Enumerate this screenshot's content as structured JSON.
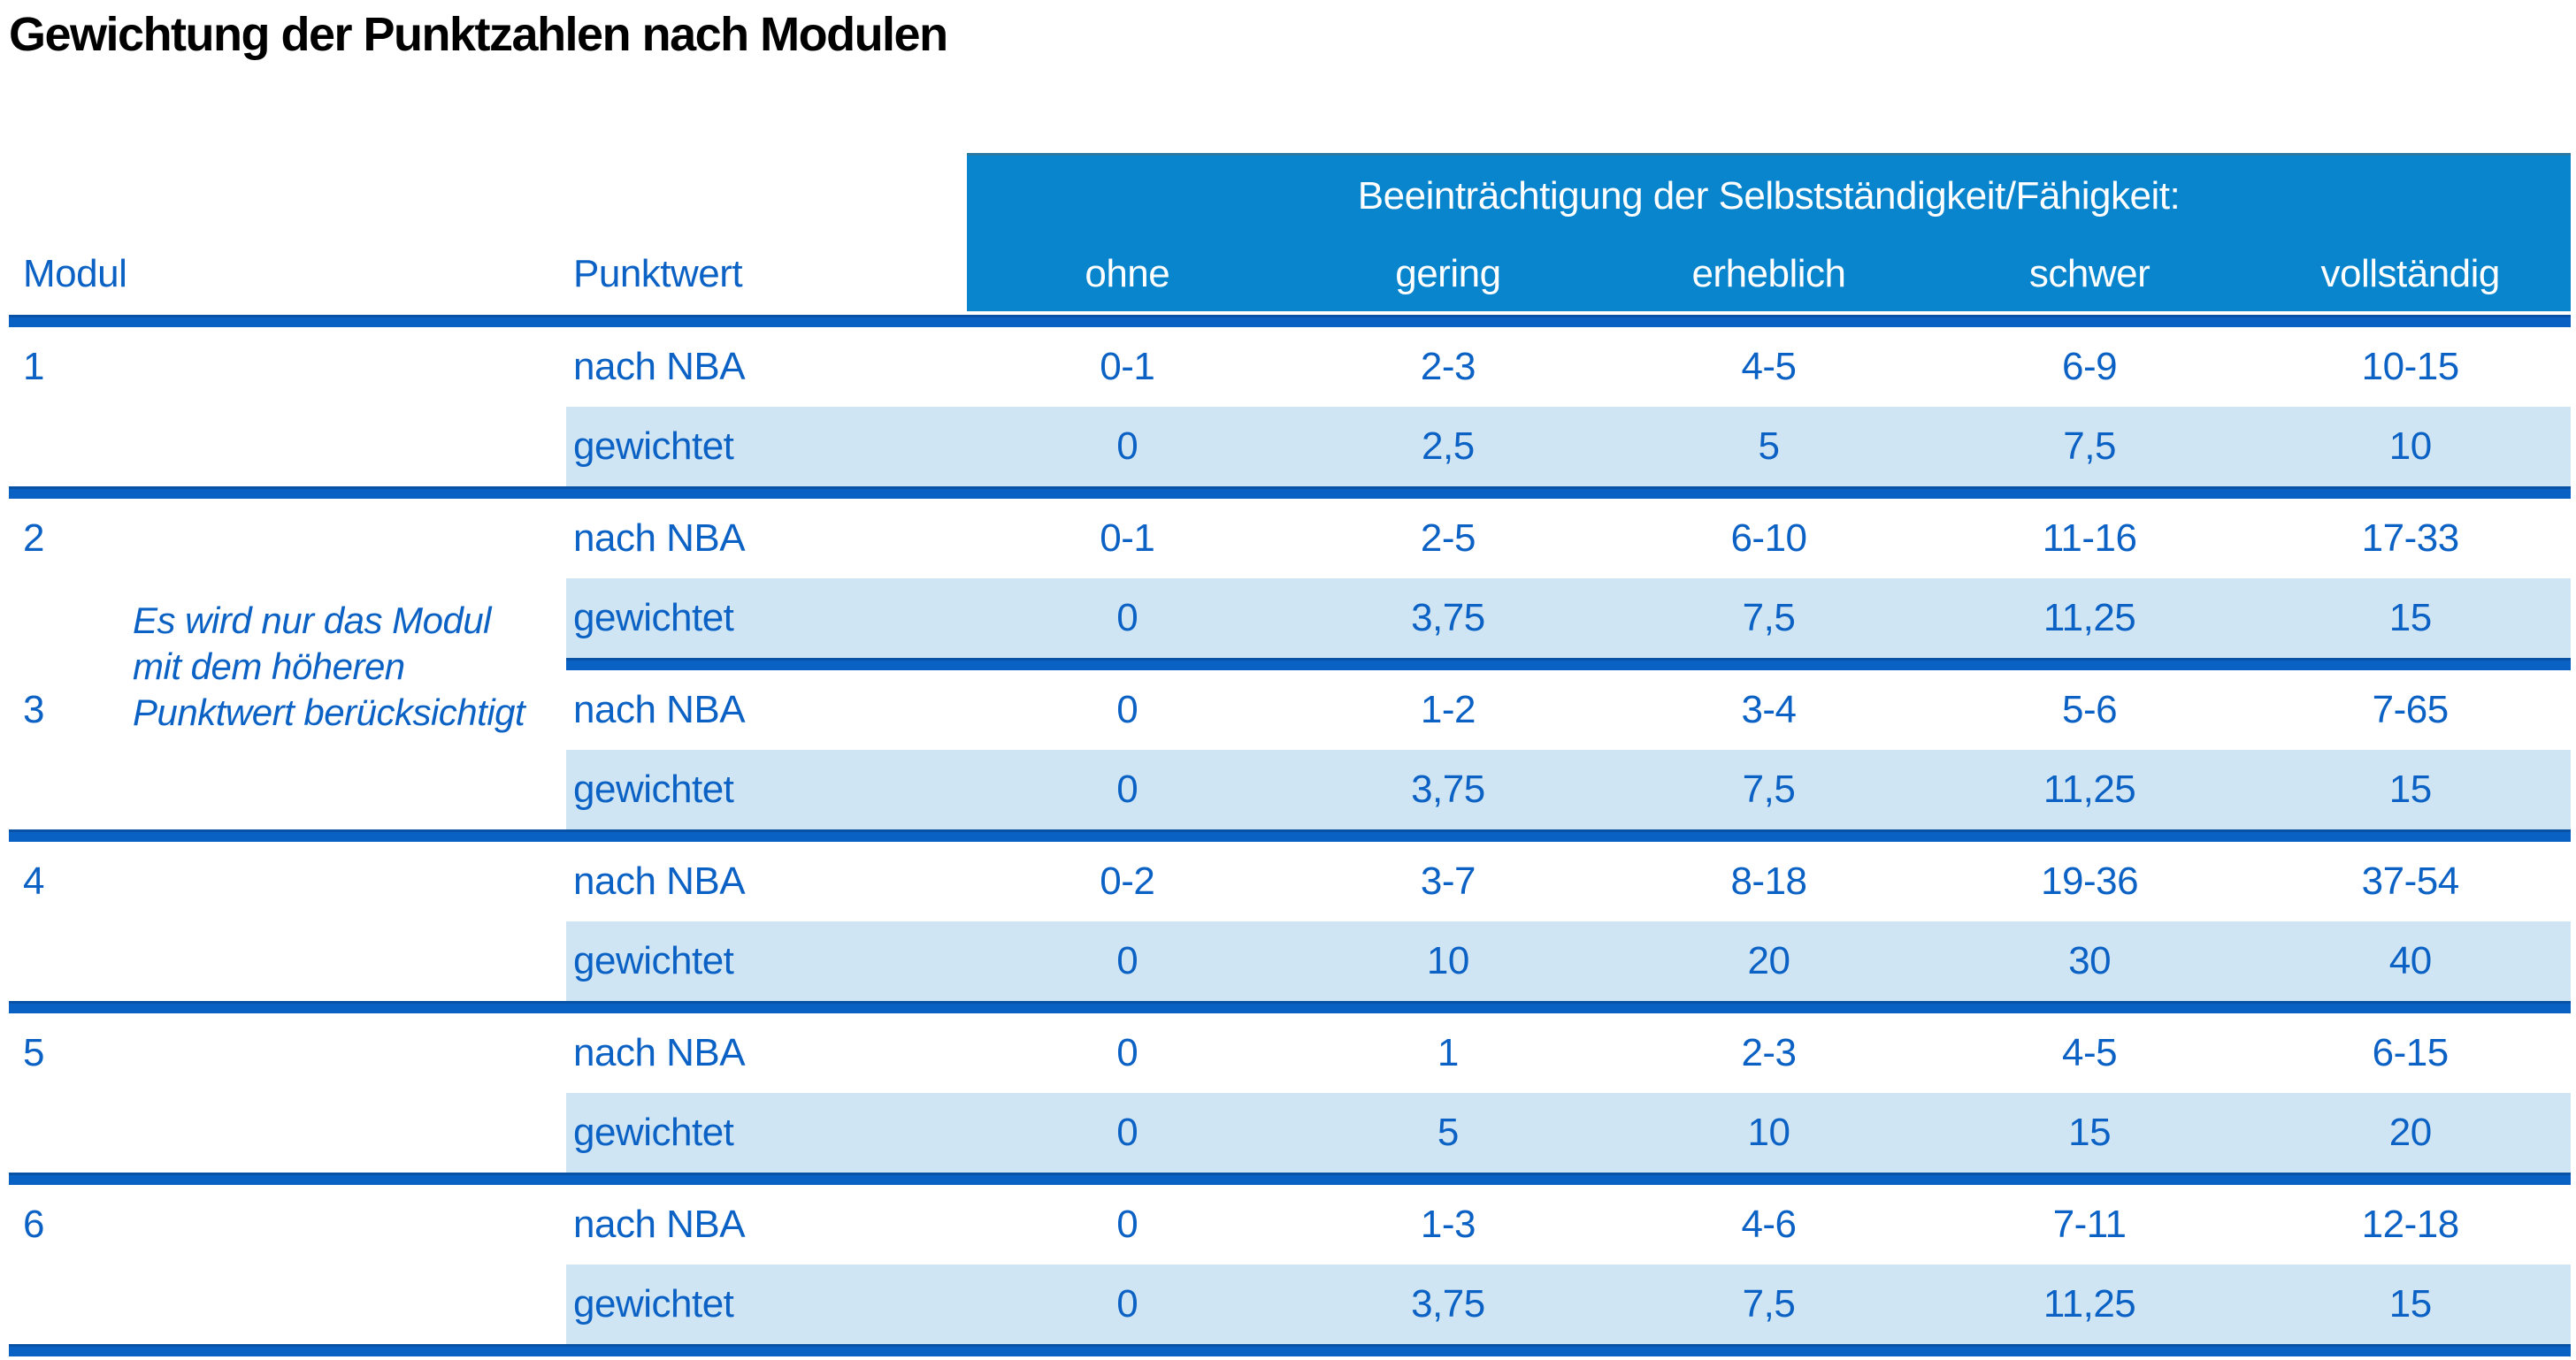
{
  "title": "Gewichtung der Punktzahlen nach Modulen",
  "colors": {
    "header_blue": "#0985cd",
    "rule_blue": "#0a61c4",
    "row_shade_blue": "#cfe5f4",
    "text_blue": "#0b62c4"
  },
  "table": {
    "header": {
      "modul_label": "Modul",
      "punktwert_label": "Punktwert",
      "group_label": "Beeinträchtigung der Selbstständigkeit/Fähigkeit:",
      "severity_labels": [
        "ohne",
        "gering",
        "erheblich",
        "schwer",
        "vollständig"
      ]
    },
    "note": {
      "lines": [
        "Es wird nur das Modul",
        "mit dem höheren",
        "Punktwert berücksichtigt"
      ]
    },
    "modules": [
      {
        "modul": "1",
        "rows": [
          {
            "label": "nach NBA",
            "values": [
              "0-1",
              "2-3",
              "4-5",
              "6-9",
              "10-15"
            ]
          },
          {
            "label": "gewichtet",
            "values": [
              "0",
              "2,5",
              "5",
              "7,5",
              "10"
            ]
          }
        ]
      },
      {
        "modul": "2",
        "rows": [
          {
            "label": "nach NBA",
            "values": [
              "0-1",
              "2-5",
              "6-10",
              "11-16",
              "17-33"
            ]
          },
          {
            "label": "gewichtet",
            "values": [
              "0",
              "3,75",
              "7,5",
              "11,25",
              "15"
            ]
          }
        ]
      },
      {
        "modul": "3",
        "rows": [
          {
            "label": "nach NBA",
            "values": [
              "0",
              "1-2",
              "3-4",
              "5-6",
              "7-65"
            ]
          },
          {
            "label": "gewichtet",
            "values": [
              "0",
              "3,75",
              "7,5",
              "11,25",
              "15"
            ]
          }
        ]
      },
      {
        "modul": "4",
        "rows": [
          {
            "label": "nach NBA",
            "values": [
              "0-2",
              "3-7",
              "8-18",
              "19-36",
              "37-54"
            ]
          },
          {
            "label": "gewichtet",
            "values": [
              "0",
              "10",
              "20",
              "30",
              "40"
            ]
          }
        ]
      },
      {
        "modul": "5",
        "rows": [
          {
            "label": "nach NBA",
            "values": [
              "0",
              "1",
              "2-3",
              "4-5",
              "6-15"
            ]
          },
          {
            "label": "gewichtet",
            "values": [
              "0",
              "5",
              "10",
              "15",
              "20"
            ]
          }
        ]
      },
      {
        "modul": "6",
        "rows": [
          {
            "label": "nach NBA",
            "values": [
              "0",
              "1-3",
              "4-6",
              "7-11",
              "12-18"
            ]
          },
          {
            "label": "gewichtet",
            "values": [
              "0",
              "3,75",
              "7,5",
              "11,25",
              "15"
            ]
          }
        ]
      }
    ]
  }
}
